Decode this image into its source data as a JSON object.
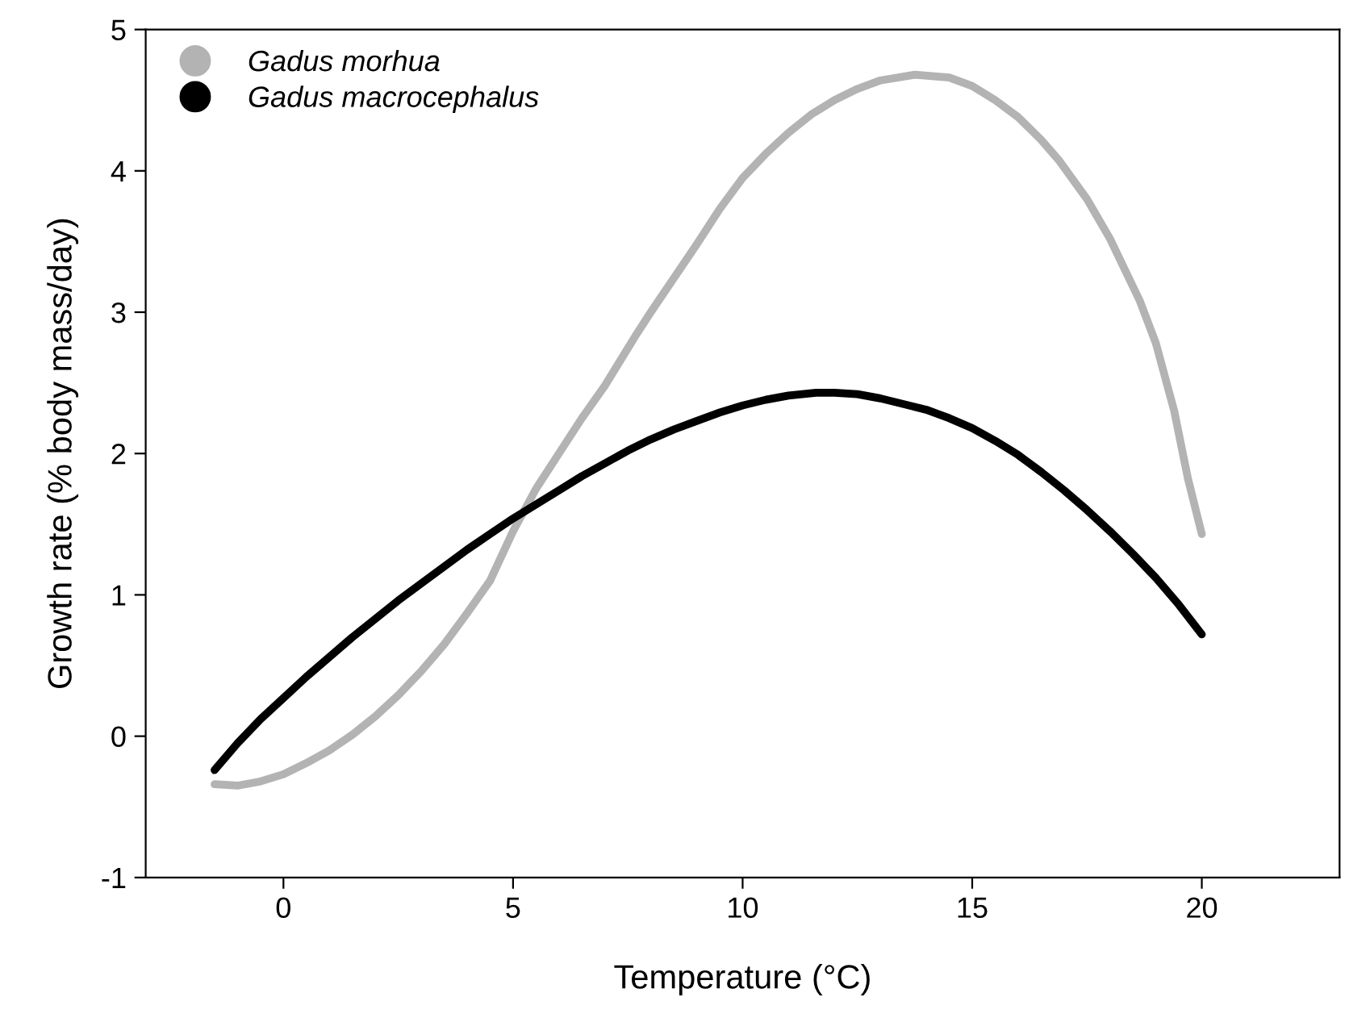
{
  "chart_data": {
    "type": "line",
    "xlabel": "Temperature (°C)",
    "ylabel": "Growth rate (% body mass/day)",
    "xlim": [
      -3,
      23
    ],
    "xticks": [
      0,
      5,
      10,
      15,
      20
    ],
    "ylim": [
      -1,
      5
    ],
    "yticks": [
      -1,
      0,
      1,
      2,
      3,
      4,
      5
    ],
    "grid": false,
    "legend": "top left",
    "marker": "none",
    "line_style": "solid",
    "series": [
      {
        "name": "Gadus morhua",
        "color": "#b3b3b3",
        "x": [
          -1.5,
          -1,
          -0.5,
          0,
          0.5,
          1,
          1.5,
          2,
          2.5,
          3,
          3.5,
          4,
          4.5,
          5,
          5.5,
          6,
          6.5,
          7,
          7.7,
          8,
          8.5,
          9,
          9.5,
          10,
          10.5,
          11,
          11.5,
          12,
          12.5,
          13,
          13.75,
          14.5,
          15,
          15.5,
          16,
          16.5,
          16.9,
          17.5,
          18,
          18.65,
          19,
          19.4,
          19.7,
          20
        ],
        "values": [
          -0.34,
          -0.35,
          -0.32,
          -0.27,
          -0.19,
          -0.1,
          0.01,
          0.14,
          0.29,
          0.46,
          0.65,
          0.87,
          1.1,
          1.45,
          1.75,
          2.0,
          2.25,
          2.48,
          2.85,
          3.0,
          3.24,
          3.48,
          3.73,
          3.95,
          4.12,
          4.27,
          4.4,
          4.5,
          4.58,
          4.64,
          4.68,
          4.66,
          4.6,
          4.5,
          4.38,
          4.22,
          4.07,
          3.8,
          3.52,
          3.08,
          2.78,
          2.3,
          1.82,
          1.43
        ]
      },
      {
        "name": "Gadus macrocephalus",
        "color": "#000000",
        "x": [
          -1.5,
          -1,
          -0.5,
          0,
          0.5,
          1,
          1.5,
          2,
          2.5,
          3,
          3.5,
          4,
          4.5,
          5,
          5.5,
          6,
          6.5,
          7,
          7.5,
          8,
          8.5,
          9,
          9.5,
          10,
          10.5,
          11,
          11.6,
          12,
          12.5,
          13,
          13.5,
          14,
          14.5,
          15,
          15.5,
          16,
          16.5,
          17,
          17.5,
          18,
          18.5,
          19,
          19.5,
          20
        ],
        "values": [
          -0.24,
          -0.05,
          0.12,
          0.27,
          0.42,
          0.56,
          0.7,
          0.83,
          0.96,
          1.08,
          1.2,
          1.32,
          1.43,
          1.54,
          1.64,
          1.74,
          1.84,
          1.93,
          2.02,
          2.1,
          2.17,
          2.23,
          2.29,
          2.34,
          2.38,
          2.41,
          2.43,
          2.43,
          2.42,
          2.39,
          2.35,
          2.31,
          2.25,
          2.18,
          2.09,
          1.99,
          1.87,
          1.74,
          1.6,
          1.45,
          1.29,
          1.12,
          0.93,
          0.72
        ]
      }
    ]
  }
}
